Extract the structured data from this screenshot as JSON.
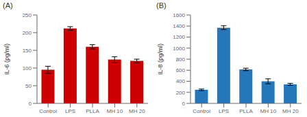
{
  "chart_data": [
    {
      "type": "bar",
      "title": "(A)",
      "categories": [
        "Control",
        "LPS",
        "PLLA",
        "MH 10",
        "MH 20"
      ],
      "values": [
        95,
        212,
        160,
        124,
        120
      ],
      "errors": [
        10,
        5,
        6,
        8,
        5
      ],
      "color": "#CC0000",
      "ylabel": "IL-6 (pg/ml)",
      "ylim": [
        0,
        250
      ],
      "yticks": [
        0,
        50,
        100,
        150,
        200,
        250
      ]
    },
    {
      "type": "bar",
      "title": "(B)",
      "categories": [
        "Control",
        "LPS",
        "PLLA",
        "MH 10",
        "MH 20"
      ],
      "values": [
        245,
        1370,
        615,
        400,
        345
      ],
      "errors": [
        15,
        35,
        22,
        45,
        18
      ],
      "color": "#2477BB",
      "ylabel": "IL-8 (pg/ml)",
      "ylim": [
        0,
        1600
      ],
      "yticks": [
        0,
        200,
        400,
        600,
        800,
        1000,
        1200,
        1400,
        1600
      ]
    }
  ]
}
